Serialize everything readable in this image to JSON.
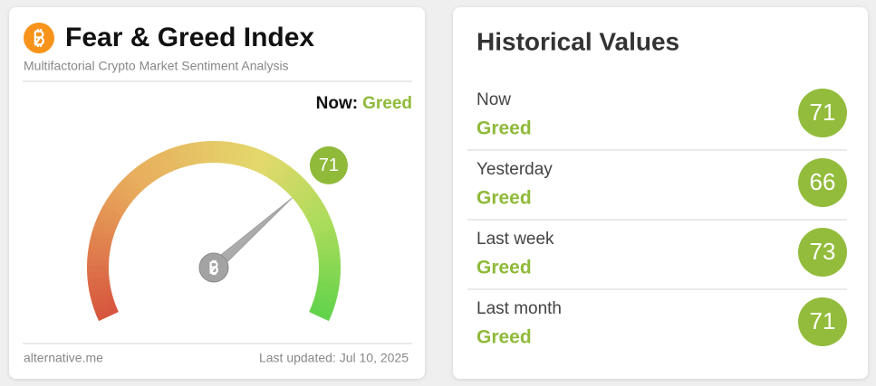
{
  "header": {
    "title": "Fear & Greed Index",
    "subtitle": "Multifactorial Crypto Market Sentiment Analysis"
  },
  "now": {
    "label": "Now:",
    "classification": "Greed"
  },
  "gauge": {
    "value": 71,
    "min": 0,
    "max": 100
  },
  "footer": {
    "source": "alternative.me",
    "updated": "Last updated: Jul 10, 2025"
  },
  "historical": {
    "title": "Historical Values",
    "rows": [
      {
        "period": "Now",
        "classification": "Greed",
        "value": 71
      },
      {
        "period": "Yesterday",
        "classification": "Greed",
        "value": 66
      },
      {
        "period": "Last week",
        "classification": "Greed",
        "value": 73
      },
      {
        "period": "Last month",
        "classification": "Greed",
        "value": 71
      }
    ]
  }
}
